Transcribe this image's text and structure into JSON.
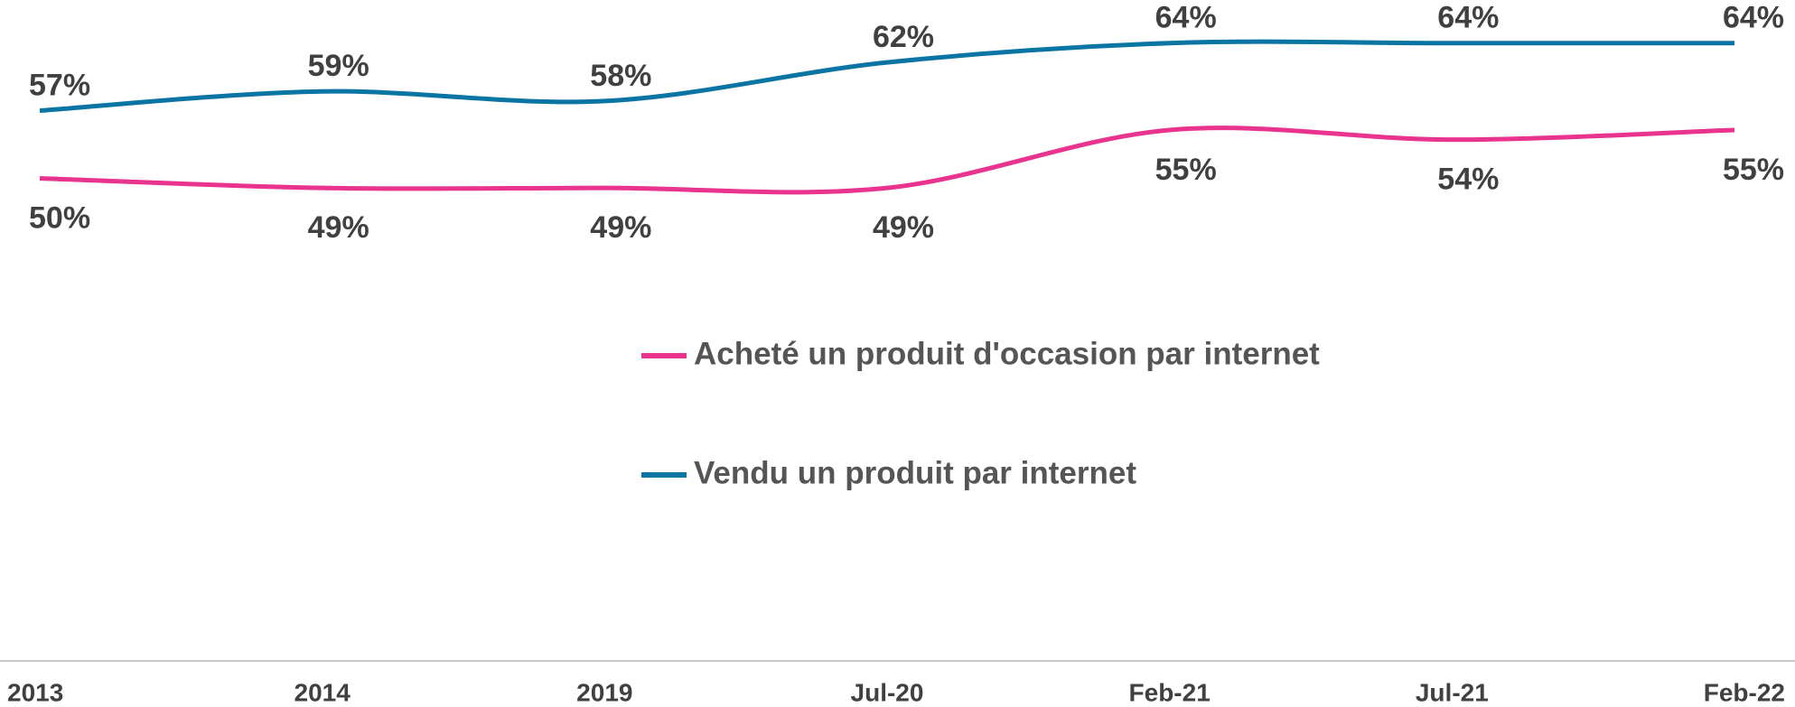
{
  "chart_data": {
    "type": "line",
    "categories": [
      "2013",
      "2014",
      "2019",
      "Jul-20",
      "Feb-21",
      "Jul-21",
      "Feb-22"
    ],
    "series": [
      {
        "name": "Acheté un produit d'occasion par internet",
        "color": "#e8338f",
        "values": [
          50,
          49,
          49,
          49,
          55,
          54,
          55
        ],
        "value_labels": [
          "50%",
          "49%",
          "49%",
          "49%",
          "55%",
          "54%",
          "55%"
        ]
      },
      {
        "name": "Vendu un produit par internet",
        "color": "#0a74a3",
        "values": [
          57,
          59,
          58,
          62,
          64,
          64,
          64
        ],
        "value_labels": [
          "57%",
          "59%",
          "58%",
          "62%",
          "64%",
          "64%",
          "64%"
        ]
      }
    ],
    "ylim": [
      0,
      68
    ],
    "smooth": true
  }
}
